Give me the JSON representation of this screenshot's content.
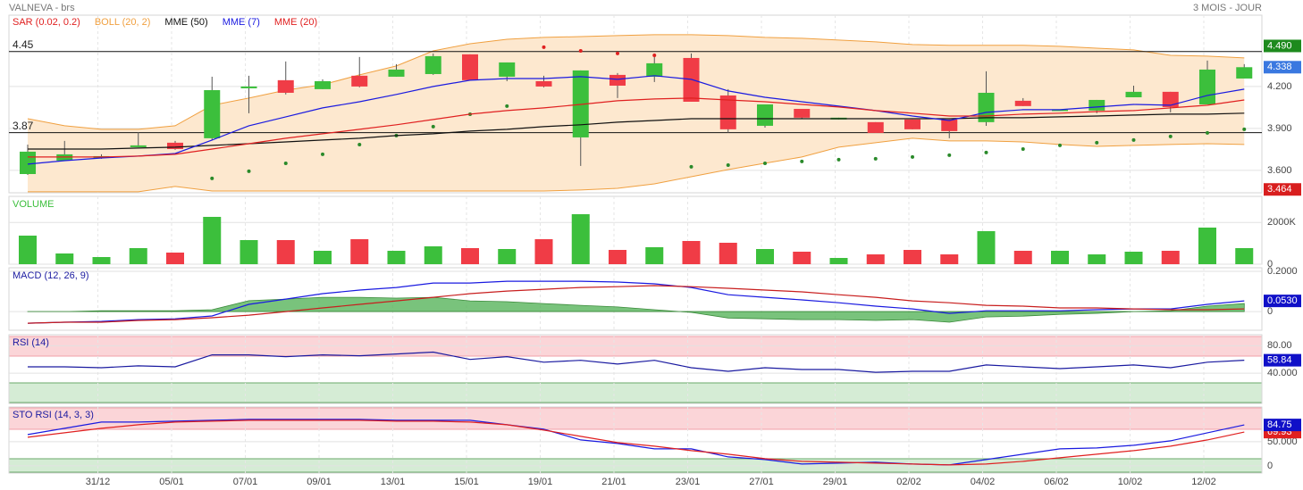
{
  "header": {
    "title": "VALNEVA - brs",
    "period": "3 MOIS - JOUR"
  },
  "chart_data": [
    {
      "type": "candlestick",
      "categories": [
        null,
        null,
        "31/12",
        null,
        "05/01",
        null,
        "07/01",
        null,
        "09/01",
        null,
        "13/01",
        null,
        "15/01",
        null,
        "19/01",
        null,
        "21/01",
        null,
        "23/01",
        null,
        "27/01",
        null,
        "29/01",
        null,
        "02/02",
        null,
        "04/02",
        null,
        "06/02",
        null,
        "10/02",
        null,
        "12/02",
        null
      ],
      "open": [
        3.574,
        3.67,
        3.689,
        3.766,
        3.798,
        3.83,
        4.187,
        4.245,
        4.181,
        4.277,
        4.27,
        4.289,
        4.43,
        4.27,
        4.238,
        3.836,
        4.283,
        4.27,
        4.404,
        4.136,
        3.919,
        4.04,
        3.964,
        3.945,
        3.964,
        3.964,
        3.945,
        4.098,
        4.028,
        4.028,
        4.123,
        4.162,
        4.072,
        4.257
      ],
      "high": [
        3.785,
        3.811,
        3.715,
        3.874,
        3.811,
        4.27,
        4.277,
        4.379,
        4.251,
        4.411,
        4.36,
        4.436,
        4.43,
        4.372,
        4.277,
        4.315,
        4.296,
        4.436,
        4.436,
        4.181,
        4.072,
        4.04,
        3.977,
        3.945,
        3.964,
        3.964,
        4.309,
        4.117,
        4.034,
        4.104,
        4.206,
        4.162,
        4.385,
        4.36
      ],
      "low": [
        3.568,
        3.67,
        3.683,
        3.766,
        3.747,
        3.817,
        4.009,
        4.143,
        4.181,
        4.194,
        4.27,
        4.283,
        4.245,
        4.238,
        4.194,
        3.632,
        4.117,
        4.232,
        4.091,
        3.868,
        3.906,
        3.97,
        3.964,
        3.868,
        3.894,
        3.83,
        3.919,
        4.06,
        4.028,
        4.009,
        4.123,
        4.015,
        4.072,
        4.257
      ],
      "close": [
        3.734,
        3.715,
        3.702,
        3.779,
        3.753,
        4.174,
        4.2,
        4.155,
        4.238,
        4.2,
        4.321,
        4.417,
        4.245,
        4.372,
        4.2,
        4.315,
        4.206,
        4.366,
        4.091,
        3.894,
        4.072,
        3.977,
        3.977,
        3.868,
        3.894,
        3.881,
        4.155,
        4.06,
        4.034,
        4.104,
        4.162,
        4.053,
        4.321,
        4.338
      ],
      "up_color": "#3cbf3c",
      "down_color": "#f03c46",
      "series": [
        {
          "name": "SAR (0.02, 0.2)",
          "color": "#e02020",
          "style": "dots",
          "values": [
            null,
            null,
            null,
            null,
            null,
            3.543,
            3.594,
            3.651,
            3.715,
            3.785,
            3.849,
            3.913,
            4.002,
            4.06,
            4.481,
            4.455,
            4.436,
            4.423,
            3.626,
            3.638,
            3.651,
            3.664,
            3.677,
            3.683,
            3.696,
            3.709,
            3.728,
            3.753,
            3.779,
            3.798,
            3.817,
            3.843,
            3.868,
            3.894
          ],
          "dot_color": "#2a8a2a"
        },
        {
          "name": "BOLL (20, 2)",
          "color": "#f0a040",
          "style": "band",
          "fill": "#fde8cf",
          "upper": [
            3.97,
            3.919,
            3.894,
            3.894,
            3.919,
            4.066,
            4.117,
            4.174,
            4.213,
            4.283,
            4.347,
            4.455,
            4.506,
            4.538,
            4.551,
            4.557,
            4.564,
            4.57,
            4.57,
            4.564,
            4.551,
            4.545,
            4.532,
            4.519,
            4.5,
            4.494,
            4.494,
            4.494,
            4.487,
            4.474,
            4.462,
            4.423,
            4.417,
            4.404
          ],
          "lower": [
            3.447,
            3.447,
            3.447,
            3.447,
            3.485,
            3.453,
            3.453,
            3.453,
            3.453,
            3.453,
            3.453,
            3.453,
            3.453,
            3.453,
            3.453,
            3.46,
            3.472,
            3.504,
            3.555,
            3.606,
            3.651,
            3.696,
            3.766,
            3.798,
            3.83,
            3.811,
            3.811,
            3.804,
            3.785,
            3.772,
            3.779,
            3.785,
            3.791,
            3.785
          ]
        },
        {
          "name": "MME (50)",
          "color": "#111111",
          "style": "line",
          "values": [
            3.753,
            3.753,
            3.753,
            3.76,
            3.766,
            3.779,
            3.791,
            3.804,
            3.817,
            3.83,
            3.849,
            3.862,
            3.881,
            3.894,
            3.913,
            3.926,
            3.945,
            3.957,
            3.97,
            3.97,
            3.97,
            3.97,
            3.97,
            3.97,
            3.97,
            3.97,
            3.977,
            3.977,
            3.983,
            3.989,
            3.996,
            4.002,
            4.002,
            4.009
          ]
        },
        {
          "name": "MME (7)",
          "color": "#1a1ae0",
          "style": "line",
          "values": [
            3.645,
            3.67,
            3.689,
            3.702,
            3.721,
            3.817,
            3.919,
            3.983,
            4.047,
            4.091,
            4.143,
            4.2,
            4.245,
            4.257,
            4.257,
            4.27,
            4.251,
            4.277,
            4.251,
            4.168,
            4.123,
            4.091,
            4.06,
            4.028,
            3.989,
            3.957,
            4.015,
            4.034,
            4.034,
            4.053,
            4.072,
            4.066,
            4.136,
            4.181
          ]
        },
        {
          "name": "MME (20)",
          "color": "#e02020",
          "style": "line",
          "values": [
            3.696,
            3.696,
            3.696,
            3.702,
            3.715,
            3.753,
            3.791,
            3.83,
            3.862,
            3.894,
            3.926,
            3.964,
            4.002,
            4.028,
            4.047,
            4.072,
            4.098,
            4.111,
            4.117,
            4.104,
            4.091,
            4.072,
            4.053,
            4.028,
            4.009,
            3.989,
            3.989,
            4.002,
            4.009,
            4.021,
            4.028,
            4.047,
            4.066,
            4.104
          ]
        }
      ],
      "hlines": [
        4.45,
        3.87
      ],
      "ylim": [
        3.44,
        4.71
      ],
      "yticks": [
        {
          "value": 3.6,
          "label": "3.600"
        },
        {
          "value": 3.9,
          "label": "3.900"
        },
        {
          "value": 4.2,
          "label": "4.200"
        }
      ],
      "last_value_labels": [
        {
          "value": 4.49,
          "label": "4.490",
          "color": "#1d8a1d"
        },
        {
          "value": 4.338,
          "color": "#3a78e0"
        },
        {
          "value": 3.464,
          "color": "#d81e1e"
        }
      ]
    },
    {
      "type": "bar",
      "title": "VOLUME",
      "title_color": "#3cbf3c",
      "values": [
        1369,
        513,
        342,
        770,
        556,
        2267,
        1155,
        1155,
        642,
        1198,
        642,
        855,
        770,
        727,
        1198,
        2395,
        684,
        813,
        1112,
        1027,
        727,
        599,
        299,
        470,
        684,
        470,
        1583,
        642,
        642,
        470,
        599,
        642,
        1754,
        770
      ],
      "ylim": [
        0,
        3250
      ],
      "yticks": [
        {
          "value": 2000,
          "label": "2000K"
        },
        0
      ]
    },
    {
      "type": "line",
      "title": "MACD (12, 26, 9)",
      "title_color": "#1a1aa0",
      "histogram": {
        "color": "#4caf50",
        "values": [
          0,
          0,
          0.004,
          0.004,
          0.004,
          0.009,
          0.054,
          0.062,
          0.071,
          0.071,
          0.067,
          0.071,
          0.053,
          0.049,
          0.04,
          0.031,
          0.023,
          0.009,
          -0.004,
          -0.032,
          -0.036,
          -0.04,
          -0.04,
          -0.044,
          -0.04,
          -0.053,
          -0.027,
          -0.023,
          -0.014,
          -0.009,
          0,
          0.004,
          0.027,
          0.04
        ]
      },
      "series": [
        {
          "color": "#1a1ae0",
          "values": [
            -0.058,
            -0.053,
            -0.049,
            -0.04,
            -0.036,
            -0.022,
            0.036,
            0.062,
            0.089,
            0.107,
            0.12,
            0.142,
            0.142,
            0.151,
            0.151,
            0.151,
            0.147,
            0.138,
            0.12,
            0.084,
            0.071,
            0.058,
            0.044,
            0.027,
            0.013,
            -0.009,
            0.004,
            0.004,
            0.004,
            0.009,
            0.013,
            0.013,
            0.036,
            0.053
          ]
        },
        {
          "color": "#c81e1e",
          "values": [
            -0.058,
            -0.053,
            -0.053,
            -0.044,
            -0.04,
            -0.031,
            -0.018,
            0,
            0.018,
            0.036,
            0.053,
            0.071,
            0.089,
            0.102,
            0.111,
            0.12,
            0.124,
            0.129,
            0.124,
            0.116,
            0.107,
            0.098,
            0.084,
            0.071,
            0.053,
            0.044,
            0.031,
            0.027,
            0.018,
            0.018,
            0.013,
            0.009,
            0.009,
            0.013
          ]
        }
      ],
      "ylim": [
        -0.093,
        0.218
      ],
      "yticks": [
        {
          "value": 0.2,
          "label": "0.2000"
        },
        0
      ],
      "last_value_labels": [
        {
          "value": 0.053,
          "label": "0.0530",
          "color": "#1010c8"
        }
      ]
    },
    {
      "type": "line",
      "title": "RSI (14)",
      "title_color": "#1a1aa0",
      "series": [
        {
          "color": "#1a1aa0",
          "values": [
            49.3,
            49.3,
            48.0,
            50.7,
            49.3,
            66.7,
            66.7,
            64.0,
            66.7,
            65.3,
            68.0,
            70.7,
            60.0,
            64.0,
            56.0,
            58.7,
            53.3,
            58.7,
            48.0,
            42.7,
            48.0,
            45.3,
            45.3,
            41.3,
            42.7,
            42.7,
            52.0,
            49.3,
            46.7,
            49.3,
            52.0,
            48.0,
            56.0,
            58.84
          ]
        }
      ],
      "ylim": [
        -4,
        96
      ],
      "yticks": [
        {
          "value": 80,
          "label": "80.00"
        },
        {
          "value": 40,
          "label": "40.000"
        }
      ],
      "last_value_labels": [
        {
          "value": 58.84,
          "color": "#1010c8"
        }
      ]
    },
    {
      "type": "line",
      "title": "STO RSI (14, 3, 3)",
      "title_color": "#1a1aa0",
      "series": [
        {
          "color": "#1a1ae0",
          "values": [
            64.8,
            77.8,
            90.7,
            90.7,
            92.6,
            94.4,
            96.3,
            96.3,
            96.3,
            96.3,
            94.4,
            94.4,
            94.4,
            85.2,
            75.9,
            53.7,
            46.3,
            35.2,
            35.2,
            18.5,
            13.0,
            3.7,
            5.6,
            7.4,
            3.7,
            1.9,
            13.0,
            24.1,
            35.2,
            37.0,
            42.6,
            51.9,
            68.5,
            84.75
          ]
        },
        {
          "color": "#e02020",
          "values": [
            59.3,
            68.5,
            77.8,
            85.2,
            90.7,
            92.6,
            94.4,
            94.4,
            94.4,
            94.4,
            92.6,
            92.6,
            90.7,
            85.2,
            74.1,
            61.1,
            48.1,
            40.7,
            31.5,
            24.1,
            14.8,
            9.3,
            7.4,
            5.6,
            3.7,
            1.9,
            3.7,
            9.3,
            16.7,
            24.1,
            31.5,
            40.7,
            53.7,
            69.93
          ]
        }
      ],
      "ylim": [
        -15,
        122
      ],
      "yticks": [
        {
          "value": 50,
          "label": "50.000"
        },
        0
      ],
      "last_value_labels": [
        {
          "value": 69.93,
          "color": "#e02020"
        },
        {
          "value": 84.75,
          "color": "#1010c8"
        }
      ]
    }
  ]
}
